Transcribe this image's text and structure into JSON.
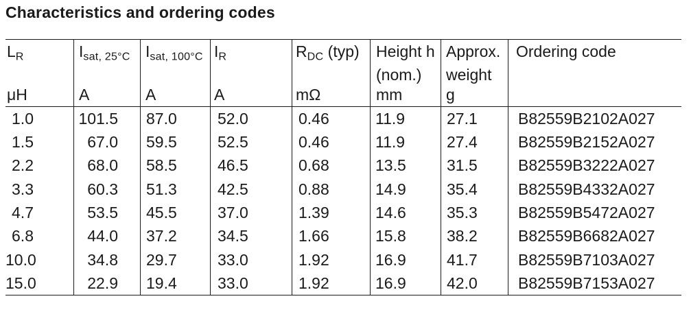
{
  "title": "Characteristics and ordering codes",
  "colors": {
    "text": "#1a1a1a",
    "border": "#1a1a1a",
    "background": "#ffffff"
  },
  "table": {
    "columns": [
      {
        "base": "L",
        "sub": "R",
        "rest": "",
        "line2": "",
        "unit": "μH"
      },
      {
        "base": "I",
        "sub": "sat, 25°C",
        "rest": "",
        "line2": "",
        "unit": "A"
      },
      {
        "base": "I",
        "sub": "sat, 100°C",
        "rest": "",
        "line2": "",
        "unit": "A"
      },
      {
        "base": "I",
        "sub": "R",
        "rest": "",
        "line2": "",
        "unit": "A"
      },
      {
        "base": "R",
        "sub": "DC",
        "rest": " (typ)",
        "line2": "",
        "unit": "mΩ"
      },
      {
        "base": "Height h",
        "sub": "",
        "rest": "",
        "line2": "(nom.)",
        "unit": "mm"
      },
      {
        "base": "Approx.",
        "sub": "",
        "rest": "",
        "line2": "weight",
        "unit": "g"
      },
      {
        "base": "Ordering code",
        "sub": "",
        "rest": "",
        "line2": "",
        "unit": ""
      }
    ],
    "rows": [
      [
        "1.0",
        "101.5",
        "87.0",
        "52.0",
        "0.46",
        "11.9",
        "27.1",
        "B82559B2102A027"
      ],
      [
        "1.5",
        "67.0",
        "59.5",
        "52.5",
        "0.46",
        "11.9",
        "27.4",
        "B82559B2152A027"
      ],
      [
        "2.2",
        "68.0",
        "58.5",
        "46.5",
        "0.68",
        "13.5",
        "31.5",
        "B82559B3222A027"
      ],
      [
        "3.3",
        "60.3",
        "51.3",
        "42.5",
        "0.88",
        "14.9",
        "35.4",
        "B82559B4332A027"
      ],
      [
        "4.7",
        "53.5",
        "45.5",
        "37.0",
        "1.39",
        "14.6",
        "35.3",
        "B82559B5472A027"
      ],
      [
        "6.8",
        "44.0",
        "37.2",
        "34.5",
        "1.66",
        "15.8",
        "38.2",
        "B82559B6682A027"
      ],
      [
        "10.0",
        "34.8",
        "29.7",
        "33.0",
        "1.92",
        "16.9",
        "41.7",
        "B82559B7103A027"
      ],
      [
        "15.0",
        "22.9",
        "19.4",
        "33.0",
        "1.92",
        "16.9",
        "42.0",
        "B82559B7153A027"
      ]
    ]
  }
}
